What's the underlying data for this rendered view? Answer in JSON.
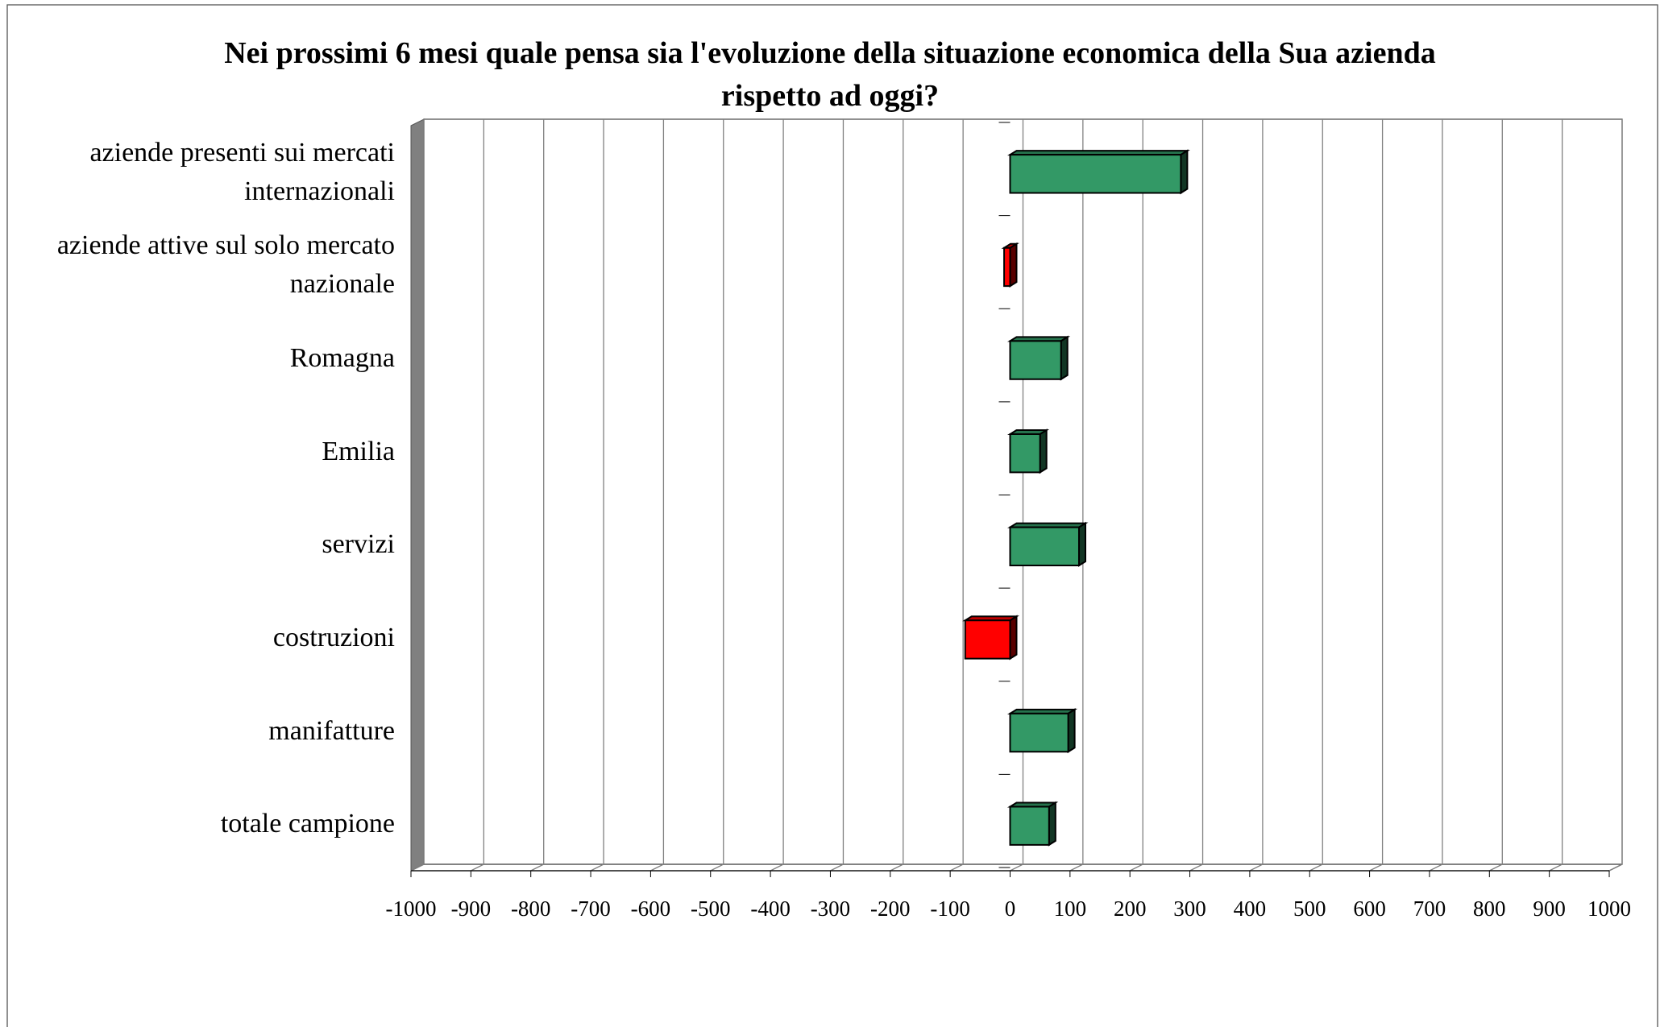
{
  "chart_data": {
    "type": "bar",
    "orientation": "horizontal",
    "title": "Nei prossimi 6 mesi quale pensa sia l'evoluzione della situazione economica della Sua azienda rispetto ad oggi?",
    "categories": [
      "aziende presenti sui mercati internazionali",
      "aziende attive sul solo mercato nazionale",
      "Romagna",
      "Emilia",
      "servizi",
      "costruzioni",
      "manifatture",
      "totale campione"
    ],
    "values": [
      285,
      -10,
      85,
      50,
      115,
      -75,
      97,
      65
    ],
    "colors": [
      "#339966",
      "#ff0000",
      "#339966",
      "#339966",
      "#339966",
      "#ff0000",
      "#339966",
      "#339966"
    ],
    "xlim": [
      -1000,
      1000
    ],
    "xticks": [
      -1000,
      -900,
      -800,
      -700,
      -600,
      -500,
      -400,
      -300,
      -200,
      -100,
      0,
      100,
      200,
      300,
      400,
      500,
      600,
      700,
      800,
      900,
      1000
    ],
    "grid": true
  }
}
